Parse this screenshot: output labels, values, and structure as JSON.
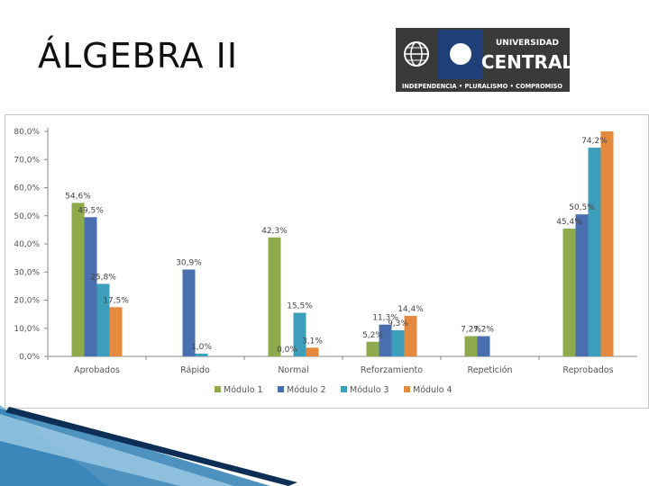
{
  "slide": {
    "title": "ÁLGEBRA II"
  },
  "logo": {
    "line1": "UNIVERSIDAD",
    "line2": "CENTRAL",
    "motto": "INDEPENDENCIA • PLURALISMO • COMPROMISO",
    "colors": {
      "dark": "#3a3a3a",
      "blue": "#1f3f78",
      "white": "#ffffff"
    }
  },
  "chart_data": {
    "type": "bar",
    "title": "",
    "xlabel": "",
    "ylabel": "",
    "ylim": [
      0,
      80
    ],
    "grid": false,
    "legend_position": "bottom",
    "y_ticks": [
      "0,0%",
      "10,0%",
      "20,0%",
      "30,0%",
      "40,0%",
      "50,0%",
      "60,0%",
      "70,0%",
      "80,0%"
    ],
    "categories": [
      "Aprobados",
      "Rápido",
      "Normal",
      "Reforzamiento",
      "Repetición",
      "Reprobados"
    ],
    "series": [
      {
        "name": "Módulo 1",
        "color": "#8faa4a",
        "values": [
          54.6,
          null,
          42.3,
          5.2,
          7.2,
          45.4
        ],
        "labels": [
          "54,6%",
          "",
          "42,3%",
          "5,2%",
          "7,2%",
          "45,4%"
        ]
      },
      {
        "name": "Módulo 2",
        "color": "#4a6fb0",
        "values": [
          49.5,
          30.9,
          0.0,
          11.3,
          7.2,
          50.5
        ],
        "labels": [
          "49,5%",
          "30,9%",
          "0,0%",
          "11,3%",
          "7,2%",
          "50,5%"
        ]
      },
      {
        "name": "Módulo 3",
        "color": "#3e9fbd",
        "values": [
          25.8,
          1.0,
          15.5,
          9.3,
          null,
          74.2
        ],
        "labels": [
          "25,8%",
          "1,0%",
          "15,5%",
          "9,3%",
          "",
          "74,2%"
        ]
      },
      {
        "name": "Módulo 4",
        "color": "#e58a3c",
        "values": [
          17.5,
          null,
          3.1,
          14.4,
          null,
          80.0
        ],
        "labels": [
          "17,5%",
          "",
          "3,1%",
          "14,4%",
          "",
          ""
        ]
      }
    ]
  }
}
